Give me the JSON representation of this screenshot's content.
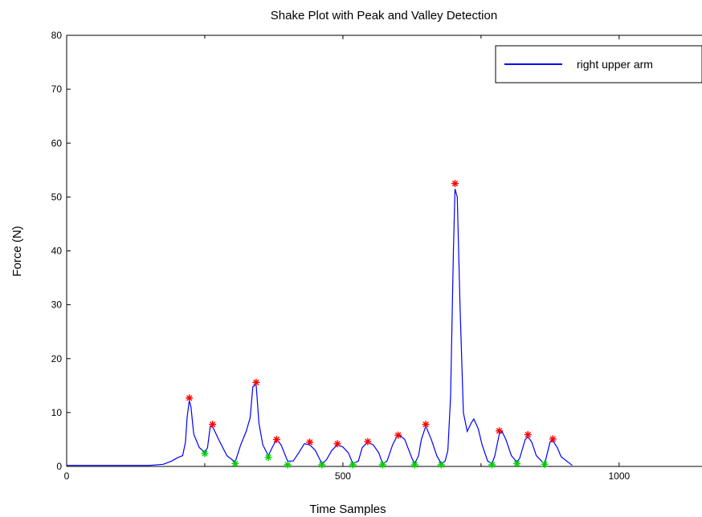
{
  "chart_data": {
    "type": "line",
    "title": "Shake Plot with Peak and Valley Detection",
    "xlabel": "Time Samples",
    "ylabel": "Force (N)",
    "xlim": [
      0,
      1150
    ],
    "ylim": [
      0,
      80
    ],
    "x_ticks": [
      0,
      500,
      1000
    ],
    "y_ticks": [
      0,
      10,
      20,
      30,
      40,
      50,
      60,
      70,
      80
    ],
    "grid": false,
    "legend_position": "top-right",
    "series": [
      {
        "name": "right upper arm",
        "color": "#0000ff",
        "points": [
          [
            0,
            0.2
          ],
          [
            150,
            0.2
          ],
          [
            175,
            0.4
          ],
          [
            190,
            1.0
          ],
          [
            200,
            1.6
          ],
          [
            210,
            2.0
          ],
          [
            215,
            4.5
          ],
          [
            218,
            9.0
          ],
          [
            222,
            12.3
          ],
          [
            225,
            11.0
          ],
          [
            230,
            6.0
          ],
          [
            240,
            3.5
          ],
          [
            250,
            2.6
          ],
          [
            255,
            3.5
          ],
          [
            260,
            7.5
          ],
          [
            265,
            7.2
          ],
          [
            275,
            5.0
          ],
          [
            290,
            2.0
          ],
          [
            305,
            0.8
          ],
          [
            315,
            4.0
          ],
          [
            325,
            6.5
          ],
          [
            332,
            9.0
          ],
          [
            337,
            14.8
          ],
          [
            343,
            15.2
          ],
          [
            348,
            8.0
          ],
          [
            355,
            4.0
          ],
          [
            365,
            2.0
          ],
          [
            372,
            3.5
          ],
          [
            380,
            5.0
          ],
          [
            388,
            4.0
          ],
          [
            400,
            1.0
          ],
          [
            410,
            1.0
          ],
          [
            420,
            2.5
          ],
          [
            430,
            4.2
          ],
          [
            440,
            4.0
          ],
          [
            450,
            3.0
          ],
          [
            462,
            0.5
          ],
          [
            470,
            1.2
          ],
          [
            480,
            3.0
          ],
          [
            490,
            4.0
          ],
          [
            500,
            3.6
          ],
          [
            510,
            2.5
          ],
          [
            518,
            0.5
          ],
          [
            528,
            1.0
          ],
          [
            535,
            3.5
          ],
          [
            545,
            4.5
          ],
          [
            555,
            4.0
          ],
          [
            565,
            2.5
          ],
          [
            572,
            0.5
          ],
          [
            580,
            1.0
          ],
          [
            590,
            4.0
          ],
          [
            600,
            6.0
          ],
          [
            612,
            5.0
          ],
          [
            625,
            1.5
          ],
          [
            630,
            0.5
          ],
          [
            637,
            2.0
          ],
          [
            642,
            5.0
          ],
          [
            650,
            7.5
          ],
          [
            660,
            5.0
          ],
          [
            670,
            2.0
          ],
          [
            678,
            0.5
          ],
          [
            685,
            1.0
          ],
          [
            690,
            3.0
          ],
          [
            695,
            13.0
          ],
          [
            700,
            40.0
          ],
          [
            703,
            51.5
          ],
          [
            707,
            50.0
          ],
          [
            712,
            30.0
          ],
          [
            718,
            10.0
          ],
          [
            725,
            6.5
          ],
          [
            732,
            8.0
          ],
          [
            737,
            8.8
          ],
          [
            745,
            7.0
          ],
          [
            752,
            4.0
          ],
          [
            762,
            1.0
          ],
          [
            770,
            0.5
          ],
          [
            775,
            2.0
          ],
          [
            783,
            6.0
          ],
          [
            788,
            6.5
          ],
          [
            795,
            5.0
          ],
          [
            805,
            2.0
          ],
          [
            815,
            0.8
          ],
          [
            820,
            1.5
          ],
          [
            830,
            5.0
          ],
          [
            835,
            5.5
          ],
          [
            842,
            4.5
          ],
          [
            850,
            2.0
          ],
          [
            865,
            0.4
          ],
          [
            875,
            4.5
          ],
          [
            880,
            4.8
          ],
          [
            888,
            3.5
          ],
          [
            895,
            1.8
          ],
          [
            905,
            1.0
          ],
          [
            915,
            0.2
          ]
        ]
      }
    ],
    "peaks": {
      "color": "#ff0000",
      "marker": "*",
      "points": [
        [
          222,
          12.7
        ],
        [
          264,
          7.8
        ],
        [
          343,
          15.6
        ],
        [
          380,
          5.0
        ],
        [
          440,
          4.5
        ],
        [
          490,
          4.2
        ],
        [
          545,
          4.6
        ],
        [
          600,
          5.8
        ],
        [
          650,
          7.8
        ],
        [
          703,
          52.5
        ],
        [
          783,
          6.6
        ],
        [
          835,
          5.9
        ],
        [
          880,
          5.1
        ]
      ]
    },
    "valleys": {
      "color": "#00d000",
      "marker": "*",
      "points": [
        [
          250,
          2.4
        ],
        [
          305,
          0.5
        ],
        [
          365,
          1.7
        ],
        [
          400,
          0.3
        ],
        [
          462,
          0.3
        ],
        [
          518,
          0.3
        ],
        [
          572,
          0.3
        ],
        [
          630,
          0.3
        ],
        [
          678,
          0.3
        ],
        [
          770,
          0.3
        ],
        [
          815,
          0.5
        ],
        [
          865,
          0.4
        ]
      ]
    },
    "legend": {
      "entries": [
        "right upper arm"
      ]
    }
  }
}
